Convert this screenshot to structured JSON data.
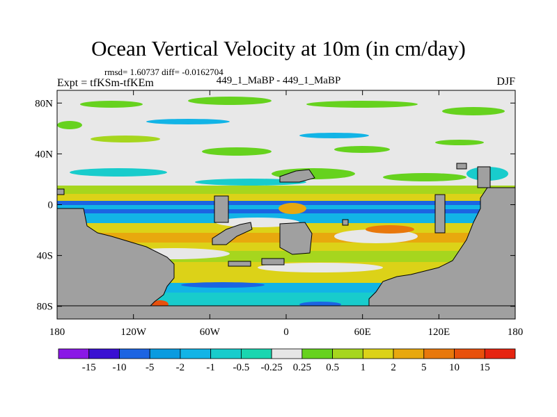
{
  "title": "Ocean Vertical Velocity at 10m (in cm/day)",
  "stats_line": "rmsd= 1.60737 diff= -0.0162704",
  "experiment_line": "Expt = tfKSm-tfKEm",
  "run_label": "449_1_MaBP - 449_1_MaBP",
  "season": "DJF",
  "chart_data": {
    "type": "heatmap",
    "title": "Ocean Vertical Velocity at 10m (in cm/day)",
    "units": "cm/day",
    "lon_range": [
      -180,
      180
    ],
    "lat_range": [
      -90,
      90
    ],
    "x_ticks": [
      {
        "value": -180,
        "label": "180"
      },
      {
        "value": -120,
        "label": "120W"
      },
      {
        "value": -60,
        "label": "60W"
      },
      {
        "value": 0,
        "label": "0"
      },
      {
        "value": 60,
        "label": "60E"
      },
      {
        "value": 120,
        "label": "120E"
      },
      {
        "value": 180,
        "label": "180"
      }
    ],
    "y_ticks": [
      {
        "value": 80,
        "label": "80N"
      },
      {
        "value": 40,
        "label": "40N"
      },
      {
        "value": 0,
        "label": "0"
      },
      {
        "value": -40,
        "label": "40S"
      },
      {
        "value": -80,
        "label": "80S"
      }
    ],
    "contour_levels": [
      "-15",
      "-10",
      "-5",
      "-2",
      "-1",
      "-0.5",
      "-0.25",
      "0.25",
      "0.5",
      "1",
      "2",
      "5",
      "10",
      "15"
    ],
    "colors": [
      "#8a18e6",
      "#3a10d2",
      "#1c64e2",
      "#0a9be0",
      "#12b4e6",
      "#18cccc",
      "#1ad6b0",
      "#e6e6e6",
      "#66d21e",
      "#a6d61e",
      "#dcd218",
      "#e8a80e",
      "#e8780c",
      "#e8500c",
      "#e62410"
    ],
    "land_color": "#a0a0a0",
    "background_color": "#e8e8e8"
  }
}
